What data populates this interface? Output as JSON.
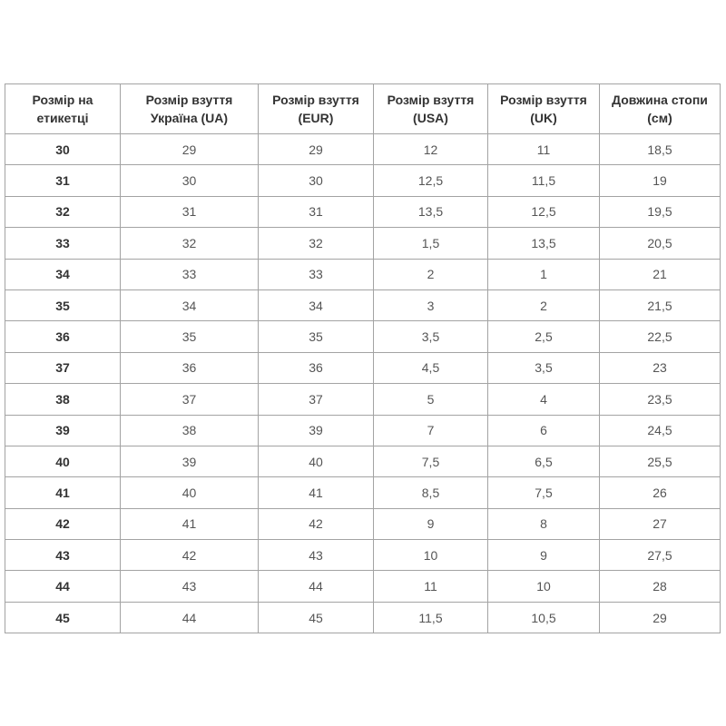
{
  "table": {
    "headers": [
      "Розмір на етикетці",
      "Розмір взуття Україна (UA)",
      "Розмір взуття (EUR)",
      "Розмір взуття (USA)",
      "Розмір взуття (UK)",
      "Довжина стопи (см)"
    ],
    "rows": [
      [
        "30",
        "29",
        "29",
        "12",
        "11",
        "18,5"
      ],
      [
        "31",
        "30",
        "30",
        "12,5",
        "11,5",
        "19"
      ],
      [
        "32",
        "31",
        "31",
        "13,5",
        "12,5",
        "19,5"
      ],
      [
        "33",
        "32",
        "32",
        "1,5",
        "13,5",
        "20,5"
      ],
      [
        "34",
        "33",
        "33",
        "2",
        "1",
        "21"
      ],
      [
        "35",
        "34",
        "34",
        "3",
        "2",
        "21,5"
      ],
      [
        "36",
        "35",
        "35",
        "3,5",
        "2,5",
        "22,5"
      ],
      [
        "37",
        "36",
        "36",
        "4,5",
        "3,5",
        "23"
      ],
      [
        "38",
        "37",
        "37",
        "5",
        "4",
        "23,5"
      ],
      [
        "39",
        "38",
        "39",
        "7",
        "6",
        "24,5"
      ],
      [
        "40",
        "39",
        "40",
        "7,5",
        "6,5",
        "25,5"
      ],
      [
        "41",
        "40",
        "41",
        "8,5",
        "7,5",
        "26"
      ],
      [
        "42",
        "41",
        "42",
        "9",
        "8",
        "27"
      ],
      [
        "43",
        "42",
        "43",
        "10",
        "9",
        "27,5"
      ],
      [
        "44",
        "43",
        "44",
        "11",
        "10",
        "28"
      ],
      [
        "45",
        "44",
        "45",
        "11,5",
        "10,5",
        "29"
      ]
    ]
  }
}
